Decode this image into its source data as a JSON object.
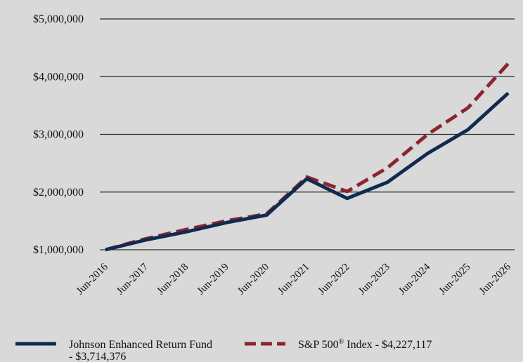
{
  "chart_data": {
    "type": "line",
    "x": [
      "Jun-2016",
      "Jun-2017",
      "Jun-2018",
      "Jun-2019",
      "Jun-2020",
      "Jun-2021",
      "Jun-2022",
      "Jun-2023",
      "Jun-2024",
      "Jun-2025",
      "Jun-2026"
    ],
    "series": [
      {
        "name": "Johnson Enhanced Return Fund - $3,714,376",
        "color": "#0f2b50",
        "dash": "solid",
        "values": [
          1000000,
          1170000,
          1310000,
          1470000,
          1600000,
          2230000,
          1890000,
          2170000,
          2670000,
          3080000,
          3714376
        ]
      },
      {
        "name": "S&P 500® Index - $4,227,117",
        "color": "#8b2530",
        "dash": "dashed",
        "values": [
          1000000,
          1190000,
          1350000,
          1500000,
          1620000,
          2260000,
          2010000,
          2420000,
          3000000,
          3460000,
          4227117
        ]
      }
    ],
    "yticks": [
      1000000,
      2000000,
      3000000,
      4000000,
      5000000
    ],
    "ytick_labels": [
      "$1,000,000",
      "$2,000,000",
      "$3,000,000",
      "$4,000,000",
      "$5,000,000"
    ],
    "ylim": [
      1000000,
      5000000
    ],
    "grid": true,
    "legend": {
      "position": "bottom",
      "fund_line1": "Johnson Enhanced Return Fund",
      "fund_line2": "- $3,714,376",
      "index_main": "S&P 500",
      "index_sup": "®",
      "index_rest": " Index - $4,227,117"
    }
  }
}
